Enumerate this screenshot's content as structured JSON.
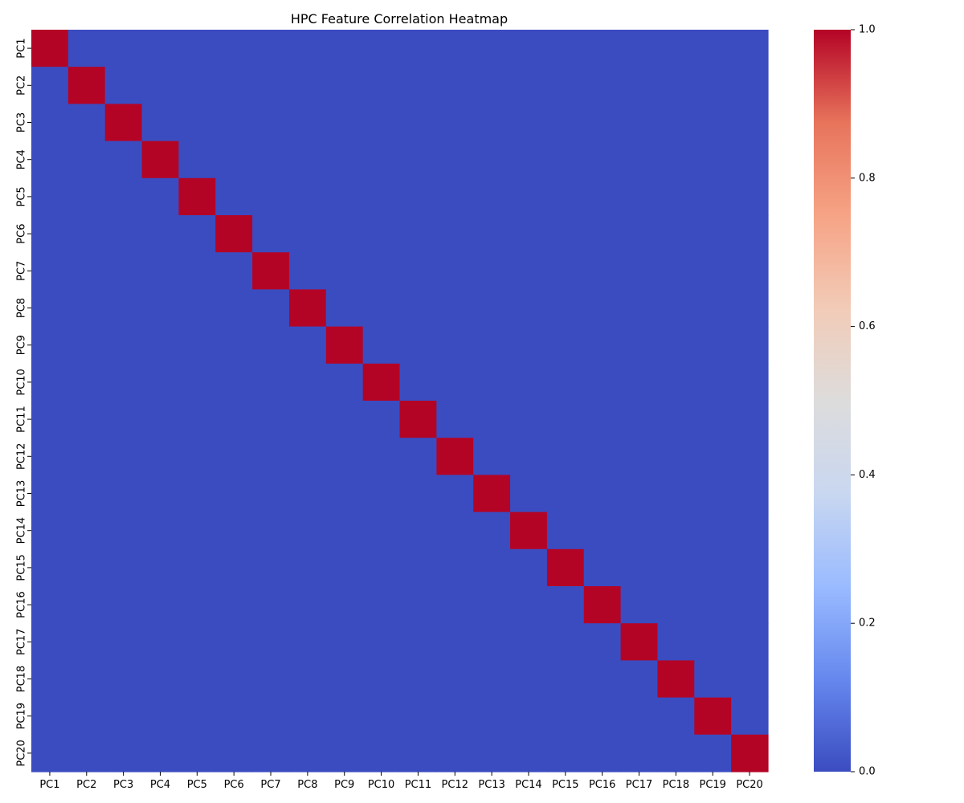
{
  "chart_data": {
    "type": "heatmap",
    "title": "HPC Feature Correlation Heatmap",
    "xlabel": "",
    "ylabel": "",
    "x_categories": [
      "PC1",
      "PC2",
      "PC3",
      "PC4",
      "PC5",
      "PC6",
      "PC7",
      "PC8",
      "PC9",
      "PC10",
      "PC11",
      "PC12",
      "PC13",
      "PC14",
      "PC15",
      "PC16",
      "PC17",
      "PC18",
      "PC19",
      "PC20"
    ],
    "y_categories": [
      "PC1",
      "PC2",
      "PC3",
      "PC4",
      "PC5",
      "PC6",
      "PC7",
      "PC8",
      "PC9",
      "PC10",
      "PC11",
      "PC12",
      "PC13",
      "PC14",
      "PC15",
      "PC16",
      "PC17",
      "PC18",
      "PC19",
      "PC20"
    ],
    "values": [
      [
        1,
        0,
        0,
        0,
        0,
        0,
        0,
        0,
        0,
        0,
        0,
        0,
        0,
        0,
        0,
        0,
        0,
        0,
        0,
        0
      ],
      [
        0,
        1,
        0,
        0,
        0,
        0,
        0,
        0,
        0,
        0,
        0,
        0,
        0,
        0,
        0,
        0,
        0,
        0,
        0,
        0
      ],
      [
        0,
        0,
        1,
        0,
        0,
        0,
        0,
        0,
        0,
        0,
        0,
        0,
        0,
        0,
        0,
        0,
        0,
        0,
        0,
        0
      ],
      [
        0,
        0,
        0,
        1,
        0,
        0,
        0,
        0,
        0,
        0,
        0,
        0,
        0,
        0,
        0,
        0,
        0,
        0,
        0,
        0
      ],
      [
        0,
        0,
        0,
        0,
        1,
        0,
        0,
        0,
        0,
        0,
        0,
        0,
        0,
        0,
        0,
        0,
        0,
        0,
        0,
        0
      ],
      [
        0,
        0,
        0,
        0,
        0,
        1,
        0,
        0,
        0,
        0,
        0,
        0,
        0,
        0,
        0,
        0,
        0,
        0,
        0,
        0
      ],
      [
        0,
        0,
        0,
        0,
        0,
        0,
        1,
        0,
        0,
        0,
        0,
        0,
        0,
        0,
        0,
        0,
        0,
        0,
        0,
        0
      ],
      [
        0,
        0,
        0,
        0,
        0,
        0,
        0,
        1,
        0,
        0,
        0,
        0,
        0,
        0,
        0,
        0,
        0,
        0,
        0,
        0
      ],
      [
        0,
        0,
        0,
        0,
        0,
        0,
        0,
        0,
        1,
        0,
        0,
        0,
        0,
        0,
        0,
        0,
        0,
        0,
        0,
        0
      ],
      [
        0,
        0,
        0,
        0,
        0,
        0,
        0,
        0,
        0,
        1,
        0,
        0,
        0,
        0,
        0,
        0,
        0,
        0,
        0,
        0
      ],
      [
        0,
        0,
        0,
        0,
        0,
        0,
        0,
        0,
        0,
        0,
        1,
        0,
        0,
        0,
        0,
        0,
        0,
        0,
        0,
        0
      ],
      [
        0,
        0,
        0,
        0,
        0,
        0,
        0,
        0,
        0,
        0,
        0,
        1,
        0,
        0,
        0,
        0,
        0,
        0,
        0,
        0
      ],
      [
        0,
        0,
        0,
        0,
        0,
        0,
        0,
        0,
        0,
        0,
        0,
        0,
        1,
        0,
        0,
        0,
        0,
        0,
        0,
        0
      ],
      [
        0,
        0,
        0,
        0,
        0,
        0,
        0,
        0,
        0,
        0,
        0,
        0,
        0,
        1,
        0,
        0,
        0,
        0,
        0,
        0
      ],
      [
        0,
        0,
        0,
        0,
        0,
        0,
        0,
        0,
        0,
        0,
        0,
        0,
        0,
        0,
        1,
        0,
        0,
        0,
        0,
        0
      ],
      [
        0,
        0,
        0,
        0,
        0,
        0,
        0,
        0,
        0,
        0,
        0,
        0,
        0,
        0,
        0,
        1,
        0,
        0,
        0,
        0
      ],
      [
        0,
        0,
        0,
        0,
        0,
        0,
        0,
        0,
        0,
        0,
        0,
        0,
        0,
        0,
        0,
        0,
        1,
        0,
        0,
        0
      ],
      [
        0,
        0,
        0,
        0,
        0,
        0,
        0,
        0,
        0,
        0,
        0,
        0,
        0,
        0,
        0,
        0,
        0,
        1,
        0,
        0
      ],
      [
        0,
        0,
        0,
        0,
        0,
        0,
        0,
        0,
        0,
        0,
        0,
        0,
        0,
        0,
        0,
        0,
        0,
        0,
        1,
        0
      ],
      [
        0,
        0,
        0,
        0,
        0,
        0,
        0,
        0,
        0,
        0,
        0,
        0,
        0,
        0,
        0,
        0,
        0,
        0,
        0,
        1
      ]
    ],
    "colorbar": {
      "range": [
        0,
        1
      ],
      "ticks": [
        0.0,
        0.2,
        0.4,
        0.6,
        0.8,
        1.0
      ],
      "tick_labels": [
        "0.0",
        "0.2",
        "0.4",
        "0.6",
        "0.8",
        "1.0"
      ]
    },
    "colormap": {
      "name": "coolwarm",
      "stops": [
        "#3b4cc0",
        "#6688ee",
        "#9abbff",
        "#c9d7f0",
        "#dddcdc",
        "#f2cbb7",
        "#f6a385",
        "#e7745b",
        "#b40426"
      ]
    },
    "grid": false,
    "legend": "colorbar-right"
  }
}
